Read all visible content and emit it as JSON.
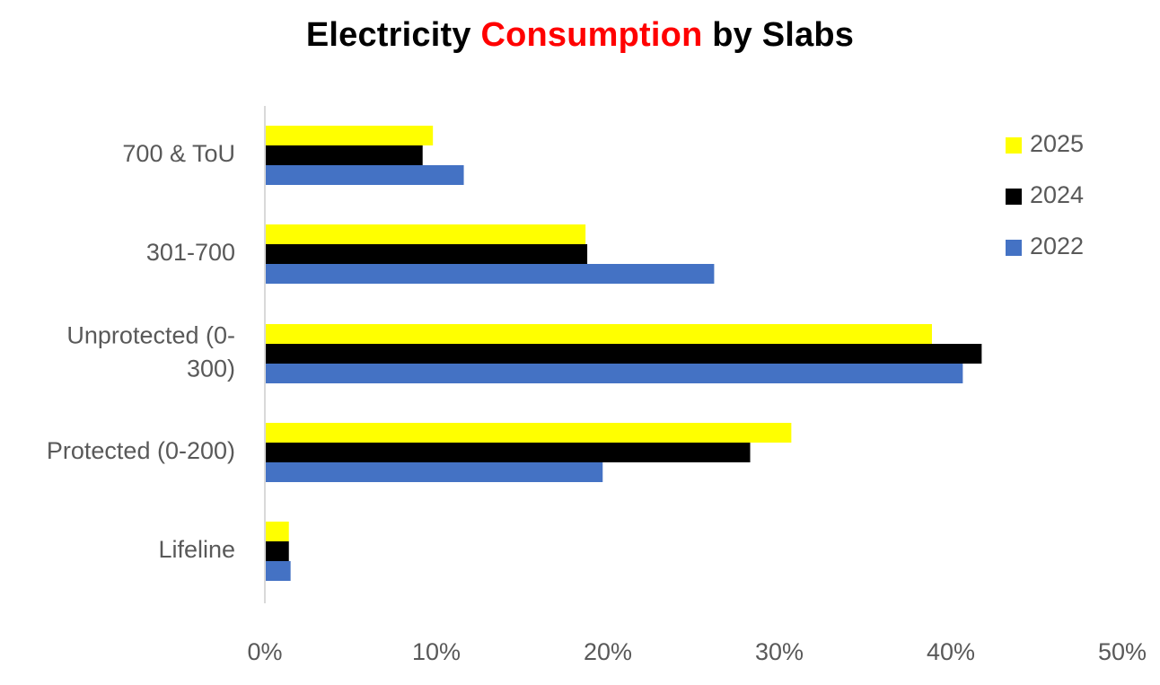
{
  "chart_data": {
    "type": "bar",
    "orientation": "horizontal",
    "title": {
      "parts": [
        {
          "text": "Electricity ",
          "color": "#000000"
        },
        {
          "text": "Consumption",
          "color": "#ff0000"
        },
        {
          "text": " by Slabs",
          "color": "#000000"
        }
      ]
    },
    "categories": [
      {
        "lines": [
          "700 & ToU"
        ]
      },
      {
        "lines": [
          "301-700"
        ]
      },
      {
        "lines": [
          "Unprotected (0-",
          "300)"
        ]
      },
      {
        "lines": [
          "Protected (0-200)"
        ]
      },
      {
        "lines": [
          "Lifeline"
        ]
      }
    ],
    "series": [
      {
        "name": "2025",
        "color": "#ffff00",
        "values": [
          9.8,
          18.7,
          38.9,
          30.7,
          1.4
        ]
      },
      {
        "name": "2024",
        "color": "#000000",
        "values": [
          9.2,
          18.8,
          41.8,
          28.3,
          1.4
        ]
      },
      {
        "name": "2022",
        "color": "#4472c4",
        "values": [
          11.6,
          26.2,
          40.7,
          19.7,
          1.5
        ]
      }
    ],
    "xlim": [
      0,
      50
    ],
    "x_ticks": [
      "0%",
      "10%",
      "20%",
      "30%",
      "40%",
      "50%"
    ],
    "xlabel": "",
    "ylabel": "",
    "grid": false,
    "legend_position": "right"
  }
}
